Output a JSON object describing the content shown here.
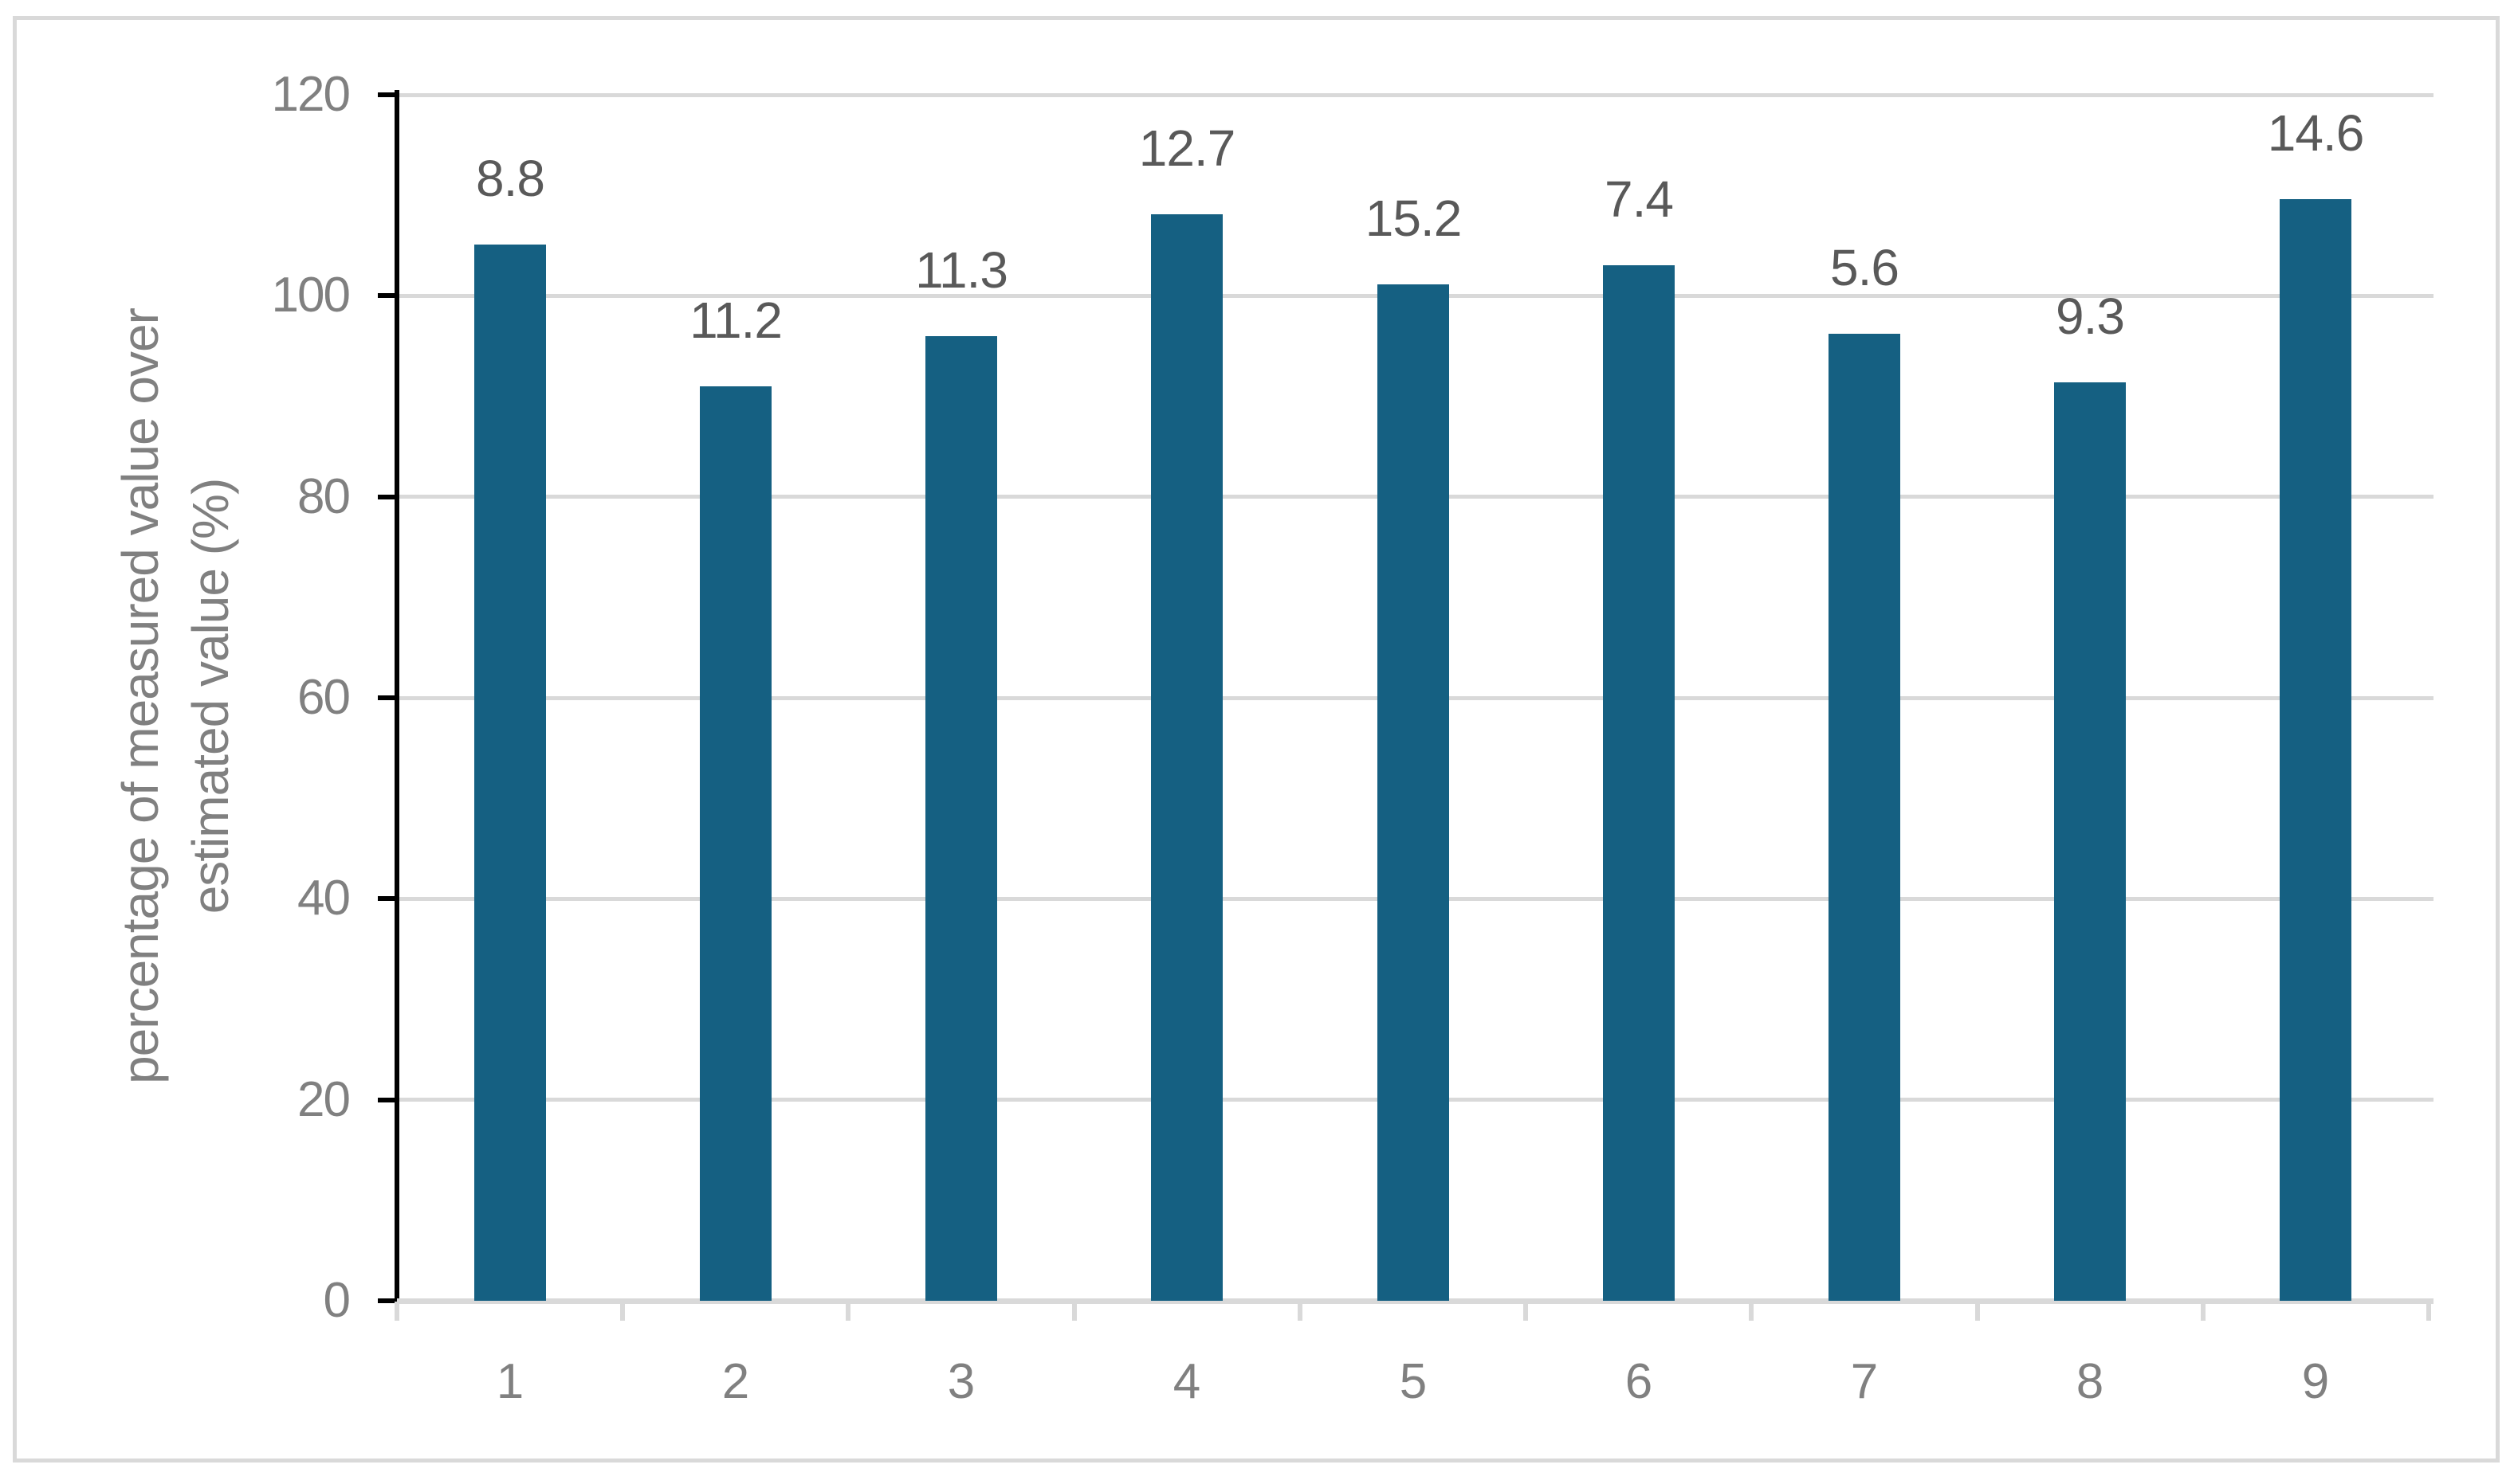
{
  "chart_data": {
    "type": "bar",
    "title": "",
    "xlabel": "",
    "ylabel": "percentage of measured value over estimated value (%)",
    "ylabel_lines": [
      "percentage of measured value over",
      "estimated value (%)"
    ],
    "categories": [
      "1",
      "2",
      "3",
      "4",
      "5",
      "6",
      "7",
      "8",
      "9"
    ],
    "values": [
      105.1,
      91.0,
      96.0,
      108.1,
      101.1,
      103.0,
      96.2,
      91.4,
      109.6
    ],
    "data_labels": [
      "8.8",
      "11.2",
      "11.3",
      "12.7",
      "15.2",
      "7.4",
      "5.6",
      "9.3",
      "14.6"
    ],
    "ylim": [
      0,
      120
    ],
    "yticks": [
      0,
      20,
      40,
      60,
      80,
      100,
      120
    ],
    "grid": true,
    "legend": "none",
    "colors": {
      "bar": "#156082",
      "gridline": "#d9d9d9",
      "axis_line": "#000000",
      "axis_baseline": "#d9d9d9",
      "tick_label": "#808080",
      "data_label": "#595959",
      "axis_title": "#808080",
      "border": "#d9d9d9",
      "background": "#ffffff"
    }
  }
}
